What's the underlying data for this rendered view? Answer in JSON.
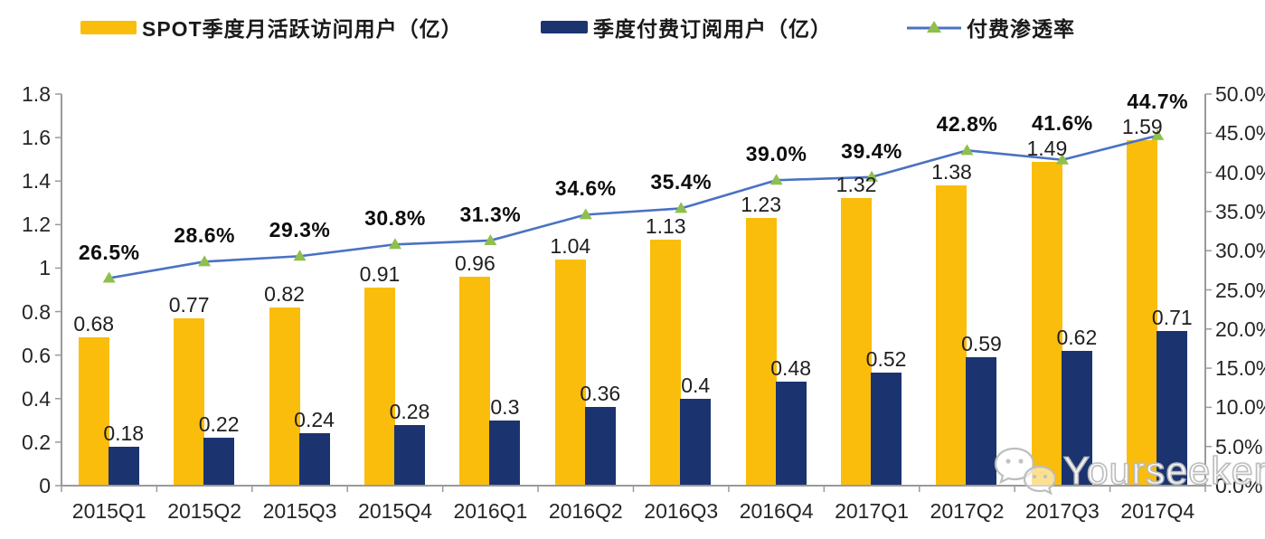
{
  "chart_data": {
    "type": "combo-bar-line",
    "title": "",
    "categories": [
      "2015Q1",
      "2015Q2",
      "2015Q3",
      "2015Q4",
      "2016Q1",
      "2016Q2",
      "2016Q3",
      "2016Q4",
      "2017Q1",
      "2017Q2",
      "2017Q3",
      "2017Q4"
    ],
    "series": [
      {
        "name": "SPOT季度月活跃访问用户（亿）",
        "type": "bar",
        "axis": "left",
        "color": "#FBBD0B",
        "values": [
          0.68,
          0.77,
          0.82,
          0.91,
          0.96,
          1.04,
          1.13,
          1.23,
          1.32,
          1.38,
          1.49,
          1.59
        ],
        "labels": [
          "0.68",
          "0.77",
          "0.82",
          "0.91",
          "0.96",
          "1.04",
          "1.13",
          "1.23",
          "1.32",
          "1.38",
          "1.49",
          "1.59"
        ]
      },
      {
        "name": "季度付费订阅用户（亿）",
        "type": "bar",
        "axis": "left",
        "color": "#1B3470",
        "values": [
          0.18,
          0.22,
          0.24,
          0.28,
          0.3,
          0.36,
          0.4,
          0.48,
          0.52,
          0.59,
          0.62,
          0.71
        ],
        "labels": [
          "0.18",
          "0.22",
          "0.24",
          "0.28",
          "0.3",
          "0.36",
          "0.4",
          "0.48",
          "0.52",
          "0.59",
          "0.62",
          "0.71"
        ]
      },
      {
        "name": "付费渗透率",
        "type": "line",
        "axis": "right",
        "color": "#4A72C4",
        "marker": "triangle",
        "marker_color": "#8FBF4D",
        "values": [
          26.5,
          28.6,
          29.3,
          30.8,
          31.3,
          34.6,
          35.4,
          39.0,
          39.4,
          42.8,
          41.6,
          44.7
        ],
        "labels": [
          "26.5%",
          "28.6%",
          "29.3%",
          "30.8%",
          "31.3%",
          "34.6%",
          "35.4%",
          "39.0%",
          "39.4%",
          "42.8%",
          "41.6%",
          "44.7%"
        ]
      }
    ],
    "left_axis": {
      "min": 0,
      "max": 1.8,
      "step": 0.2,
      "tick_labels": [
        "0",
        "0.2",
        "0.4",
        "0.6",
        "0.8",
        "1",
        "1.2",
        "1.4",
        "1.6",
        "1.8"
      ]
    },
    "right_axis": {
      "min": 0,
      "max": 50,
      "step": 5,
      "tick_labels": [
        "0.0%",
        "5.0%",
        "10.0%",
        "15.0%",
        "20.0%",
        "25.0%",
        "30.0%",
        "35.0%",
        "40.0%",
        "45.0%",
        "50.0%"
      ]
    },
    "grid": false,
    "legend_position": "top"
  },
  "watermark": {
    "text": "Yourseeker",
    "icon": "wechat-icon"
  }
}
